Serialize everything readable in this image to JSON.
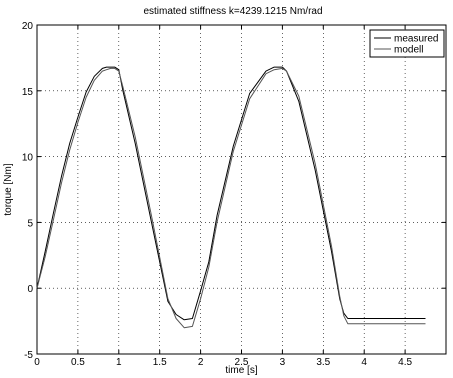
{
  "chart_data": {
    "type": "line",
    "title": "estimated stiffness k=4239.1215 Nm/rad",
    "xlabel": "time [s]",
    "ylabel": "torque [Nm]",
    "xlim": [
      0,
      5
    ],
    "ylim": [
      -5,
      20
    ],
    "xticks": [
      0,
      0.5,
      1,
      1.5,
      2,
      2.5,
      3,
      3.5,
      4,
      4.5
    ],
    "xtick_labels": [
      "0",
      "0.5",
      "1",
      "1.5",
      "2",
      "2.5",
      "3",
      "3.5",
      "4",
      "4.5"
    ],
    "yticks": [
      -5,
      0,
      5,
      10,
      15,
      20
    ],
    "ytick_labels": [
      "-5",
      "0",
      "5",
      "10",
      "15",
      "20"
    ],
    "grid": true,
    "legend_position": "top-right",
    "series": [
      {
        "name": "measured",
        "color": "#000000",
        "x": [
          0,
          0.1,
          0.2,
          0.3,
          0.4,
          0.5,
          0.6,
          0.7,
          0.8,
          0.85,
          0.9,
          0.95,
          1.0,
          1.05,
          1.2,
          1.4,
          1.6,
          1.7,
          1.8,
          1.9,
          2.0,
          2.1,
          2.2,
          2.4,
          2.6,
          2.8,
          2.9,
          3.0,
          3.05,
          3.2,
          3.4,
          3.6,
          3.7,
          3.75,
          3.8,
          4.0,
          4.5,
          4.75
        ],
        "y": [
          0,
          2.8,
          5.7,
          8.5,
          11.0,
          13.0,
          14.9,
          16.1,
          16.7,
          16.8,
          16.8,
          16.8,
          16.6,
          15.0,
          11.0,
          5.0,
          -1.0,
          -2.0,
          -2.4,
          -2.3,
          -0.2,
          2.0,
          5.5,
          10.8,
          14.8,
          16.5,
          16.8,
          16.8,
          16.5,
          14.2,
          9.0,
          2.8,
          -0.8,
          -1.9,
          -2.3,
          -2.3,
          -2.3,
          -2.3
        ]
      },
      {
        "name": "modell",
        "color": "#555555",
        "x": [
          0,
          0.1,
          0.2,
          0.3,
          0.4,
          0.5,
          0.6,
          0.7,
          0.8,
          0.85,
          0.9,
          0.95,
          1.0,
          1.05,
          1.2,
          1.4,
          1.6,
          1.7,
          1.8,
          1.9,
          2.0,
          2.1,
          2.2,
          2.4,
          2.6,
          2.8,
          2.9,
          3.0,
          3.05,
          3.2,
          3.4,
          3.6,
          3.7,
          3.75,
          3.8,
          4.0,
          4.5,
          4.75
        ],
        "y": [
          0,
          2.4,
          5.2,
          8.0,
          10.5,
          12.6,
          14.5,
          15.8,
          16.5,
          16.6,
          16.7,
          16.7,
          16.5,
          15.3,
          11.5,
          5.5,
          -0.8,
          -2.3,
          -3.0,
          -2.9,
          -0.8,
          1.6,
          5.0,
          10.4,
          14.4,
          16.3,
          16.6,
          16.7,
          16.5,
          14.6,
          9.5,
          3.2,
          -0.6,
          -2.1,
          -2.7,
          -2.7,
          -2.7,
          -2.7
        ]
      }
    ]
  }
}
